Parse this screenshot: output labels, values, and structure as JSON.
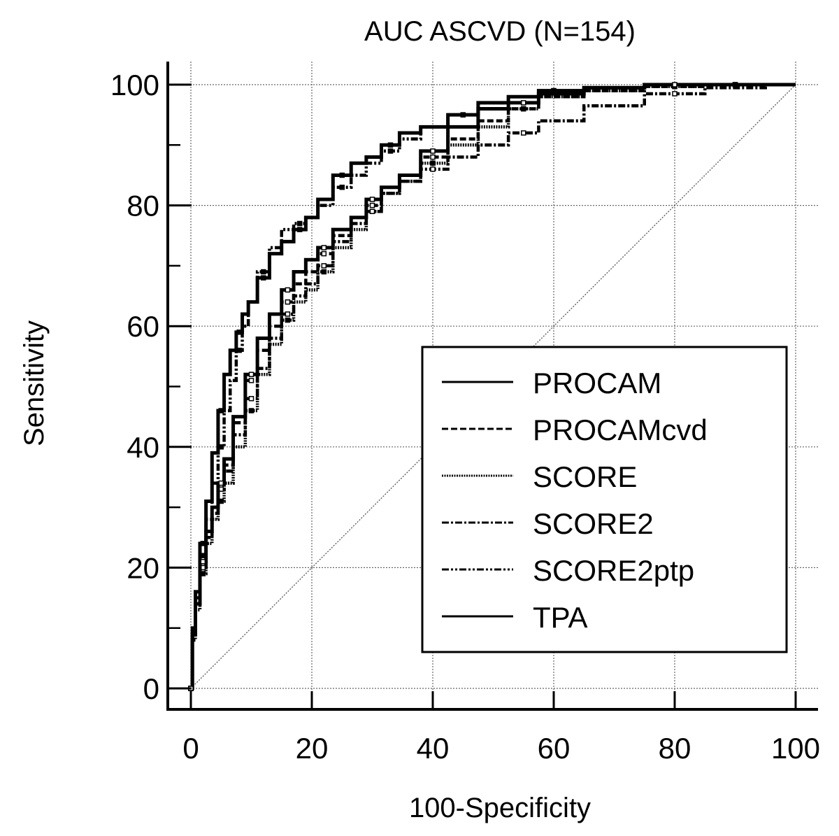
{
  "chart_data": {
    "type": "line",
    "title": "AUC ASCVD (N=154)",
    "xlabel": "100-Specificity",
    "ylabel": "Sensitivity",
    "xlim": [
      0,
      100
    ],
    "ylim": [
      0,
      100
    ],
    "xticks": [
      0,
      20,
      40,
      60,
      80,
      100
    ],
    "yticks": [
      0,
      20,
      40,
      60,
      80,
      100
    ],
    "grid": true,
    "legend_position": "bottom-right",
    "reference_line": {
      "name": "chance",
      "x": [
        0,
        100
      ],
      "y": [
        0,
        100
      ]
    },
    "series": [
      {
        "name": "PROCAM",
        "style": "solid",
        "x": [
          0,
          0.5,
          1,
          2,
          3,
          4,
          5,
          6,
          7,
          8,
          9,
          10,
          12,
          14,
          16,
          18,
          20,
          22,
          25,
          28,
          30,
          33,
          36,
          40,
          45,
          50,
          55,
          60,
          70,
          80,
          90,
          100
        ],
        "y": [
          0,
          10,
          16,
          24,
          31,
          39,
          46,
          52,
          56,
          59,
          62,
          64,
          68,
          72,
          74,
          76,
          78,
          81,
          85,
          87,
          88,
          90,
          92,
          93,
          95,
          97,
          98,
          99,
          99.5,
          100,
          100,
          100
        ]
      },
      {
        "name": "PROCAMcvd",
        "style": "dashed",
        "x": [
          0,
          0.5,
          1,
          2,
          3,
          4,
          5,
          6,
          8,
          10,
          12,
          14,
          16,
          18,
          20,
          22,
          25,
          28,
          30,
          33,
          36,
          40,
          45,
          50,
          55,
          60,
          70,
          80,
          90,
          100
        ],
        "y": [
          0,
          9,
          14,
          20,
          25,
          29,
          33,
          37,
          44,
          51,
          56,
          60,
          64,
          67,
          69,
          72,
          75,
          78,
          80,
          83,
          85,
          88,
          91,
          94,
          96,
          98,
          99,
          99.7,
          100,
          100
        ]
      },
      {
        "name": "SCORE",
        "style": "dotted",
        "x": [
          0,
          0.5,
          1,
          2,
          3,
          4,
          5,
          6,
          8,
          10,
          12,
          14,
          16,
          18,
          20,
          22,
          25,
          28,
          30,
          33,
          36,
          40,
          45,
          50,
          55,
          60,
          70,
          80,
          90,
          100
        ],
        "y": [
          0,
          8,
          13,
          19,
          24,
          28,
          31,
          34,
          40,
          46,
          52,
          57,
          61,
          64,
          66,
          69,
          73,
          76,
          79,
          82,
          84,
          87,
          90,
          93,
          96,
          98,
          99,
          99.7,
          100,
          100
        ]
      },
      {
        "name": "SCORE2",
        "style": "dash-dot",
        "x": [
          0,
          0.5,
          1,
          2,
          3,
          4,
          5,
          6,
          8,
          10,
          12,
          14,
          16,
          18,
          20,
          22,
          25,
          28,
          30,
          33,
          36,
          40,
          45,
          50,
          55,
          60,
          70,
          80,
          90,
          100
        ],
        "y": [
          0,
          9,
          14,
          20,
          25,
          29,
          33,
          36,
          42,
          48,
          53,
          58,
          62,
          65,
          67,
          70,
          74,
          77,
          79,
          82,
          84,
          86,
          88,
          90,
          92,
          94,
          96.5,
          98.5,
          99.5,
          100
        ]
      },
      {
        "name": "SCORE2ptp",
        "style": "dash-dot-dot",
        "x": [
          0,
          0.5,
          1,
          2,
          3,
          4,
          5,
          6,
          7,
          8,
          9,
          10,
          12,
          14,
          16,
          18,
          20,
          22,
          25,
          28,
          30,
          33,
          36,
          40,
          45,
          50,
          55,
          60,
          70,
          80,
          90,
          100
        ],
        "y": [
          0,
          10,
          15,
          22,
          28,
          34,
          40,
          46,
          51,
          56,
          60,
          64,
          69,
          73,
          76,
          77,
          78,
          80,
          83,
          85,
          87,
          89,
          91,
          93,
          95,
          97,
          98,
          99,
          99.5,
          100,
          100,
          100
        ]
      },
      {
        "name": "TPA",
        "style": "solid",
        "x": [
          0,
          0.5,
          1,
          2,
          3,
          4,
          5,
          6,
          8,
          10,
          12,
          14,
          16,
          18,
          20,
          22,
          25,
          28,
          30,
          33,
          36,
          40,
          45,
          50,
          55,
          60,
          70,
          80,
          90,
          100
        ],
        "y": [
          0,
          9,
          14,
          21,
          26,
          30,
          34,
          38,
          45,
          52,
          58,
          62,
          66,
          69,
          71,
          73,
          76,
          78,
          81,
          83,
          85,
          89,
          93,
          96,
          97,
          98.5,
          99.5,
          100,
          100,
          100
        ]
      }
    ]
  }
}
